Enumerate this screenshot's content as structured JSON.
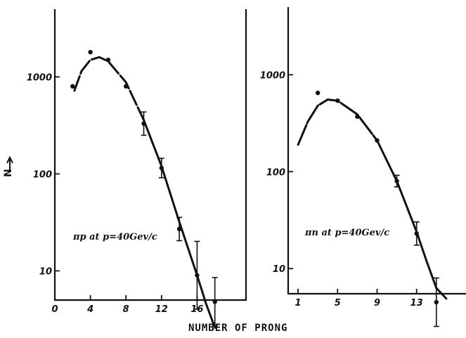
{
  "chart_data": [
    {
      "type": "scatter",
      "annotation": "πp at p=40Gev/c",
      "xlim": [
        0,
        21.5
      ],
      "ylim": [
        5,
        5000
      ],
      "log_y": true,
      "x_ticks": [
        0,
        4,
        8,
        12,
        16
      ],
      "x_tick_labels": [
        "0",
        "4",
        "8",
        "12",
        "16"
      ],
      "y_ticks": [
        10,
        100,
        1000
      ],
      "y_tick_labels": [
        "10",
        "100",
        "1000"
      ],
      "points": [
        {
          "x": 2,
          "y": 800,
          "err": 0
        },
        {
          "x": 4,
          "y": 1800,
          "err": 0
        },
        {
          "x": 6,
          "y": 1500,
          "err": 0
        },
        {
          "x": 8,
          "y": 800,
          "err": 0
        },
        {
          "x": 10,
          "y": 330,
          "err": 0.12
        },
        {
          "x": 12,
          "y": 115,
          "err": 0.1
        },
        {
          "x": 14,
          "y": 27,
          "err": 0.12
        },
        {
          "x": 16,
          "y": 9,
          "err": 0.35
        },
        {
          "x": 18,
          "y": 4.8,
          "err": 0.25
        }
      ],
      "curve": [
        [
          2.2,
          720
        ],
        [
          3,
          1150
        ],
        [
          4,
          1500
        ],
        [
          5,
          1600
        ],
        [
          6,
          1450
        ],
        [
          8,
          880
        ],
        [
          10,
          360
        ],
        [
          12,
          120
        ],
        [
          14,
          32
        ],
        [
          16,
          9
        ],
        [
          17,
          4.6
        ],
        [
          18,
          2.6
        ]
      ],
      "dash_to_x": 10
    },
    {
      "type": "scatter",
      "annotation": "πn at p=40Gev/c",
      "xlim": [
        0,
        18
      ],
      "ylim": [
        5.5,
        5000
      ],
      "log_y": true,
      "x_ticks": [
        1,
        5,
        9,
        13
      ],
      "x_tick_labels": [
        "1",
        "5",
        "9",
        "13"
      ],
      "y_ticks": [
        10,
        100,
        1000
      ],
      "y_tick_labels": [
        "10",
        "100",
        "1000"
      ],
      "points": [
        {
          "x": 3,
          "y": 650,
          "err": 0
        },
        {
          "x": 5,
          "y": 540,
          "err": 0
        },
        {
          "x": 7,
          "y": 370,
          "err": 0
        },
        {
          "x": 9,
          "y": 210,
          "err": 0
        },
        {
          "x": 11,
          "y": 80,
          "err": 0.06
        },
        {
          "x": 13,
          "y": 23,
          "err": 0.12
        },
        {
          "x": 15,
          "y": 4.5,
          "err": 0.25
        }
      ],
      "curve": [
        [
          1,
          190
        ],
        [
          2,
          330
        ],
        [
          3,
          480
        ],
        [
          4,
          555
        ],
        [
          5,
          540
        ],
        [
          7,
          390
        ],
        [
          9,
          210
        ],
        [
          11,
          80
        ],
        [
          13,
          24
        ],
        [
          14,
          12
        ],
        [
          15,
          6.3
        ],
        [
          16,
          4.9
        ]
      ],
      "dash_to_x": 9
    }
  ],
  "xlabel": "NUMBER OF PRONG",
  "ylabel": "N"
}
